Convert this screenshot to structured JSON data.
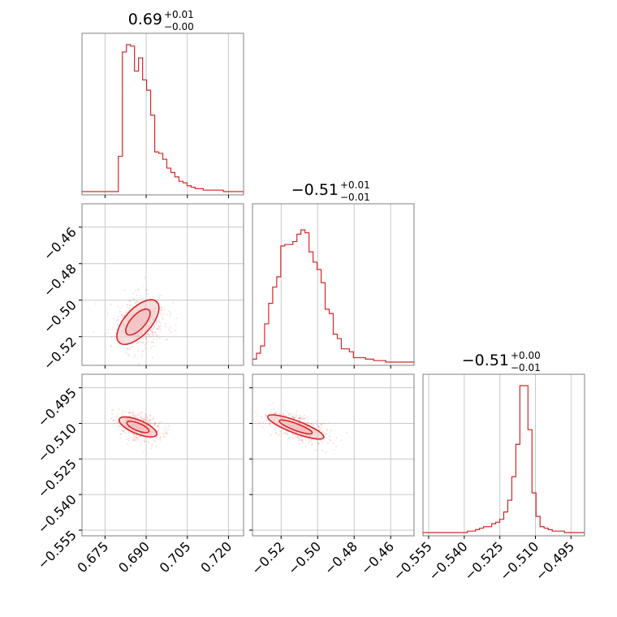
{
  "colors": {
    "series": "#d62728",
    "fill": "#f4c2c3",
    "grid": "#c8c8c8",
    "frame": "#808080"
  },
  "chart_data": {
    "type": "corner",
    "parameters": [
      "p0",
      "p1",
      "p2"
    ],
    "titles": [
      {
        "value": "0.69",
        "plus": "+0.01",
        "minus": "−0.00"
      },
      {
        "value": "−0.51",
        "plus": "+0.01",
        "minus": "−0.01"
      },
      {
        "value": "−0.51",
        "plus": "+0.00",
        "minus": "−0.01"
      }
    ],
    "ranges": [
      [
        0.6666,
        0.7255
      ],
      [
        -0.5357,
        -0.4472
      ],
      [
        -0.5574,
        -0.4893
      ]
    ],
    "ticks": [
      {
        "values": [
          0.675,
          0.69,
          0.705,
          0.72
        ],
        "labels": [
          "0.675",
          "0.690",
          "0.705",
          "0.720"
        ]
      },
      {
        "values": [
          -0.52,
          -0.5,
          -0.48,
          -0.46
        ],
        "labels": [
          "−0.52",
          "−0.50",
          "−0.48",
          "−0.46"
        ]
      },
      {
        "values": [
          -0.555,
          -0.54,
          -0.525,
          -0.51,
          -0.495
        ],
        "labels": [
          "−0.555",
          "−0.540",
          "−0.525",
          "−0.510",
          "−0.495"
        ]
      }
    ],
    "histograms": [
      {
        "counts": [
          0,
          0,
          0,
          0,
          0,
          0,
          0,
          0,
          0,
          24,
          95,
          100,
          99,
          82,
          91,
          76,
          69,
          52,
          27,
          26,
          22,
          16,
          13,
          10,
          7,
          6,
          4,
          3,
          2,
          2,
          1,
          1,
          1,
          1,
          1,
          0,
          0,
          0,
          0,
          0
        ]
      },
      {
        "counts": [
          2,
          6,
          11,
          26,
          40,
          51,
          58,
          79,
          80,
          80,
          82,
          87,
          90,
          88,
          75,
          68,
          63,
          54,
          36,
          33,
          19,
          16,
          9,
          9,
          7,
          3,
          3,
          3,
          2,
          2,
          1,
          1,
          1,
          0,
          0,
          0,
          0,
          0,
          0,
          0
        ]
      },
      {
        "counts": [
          0,
          0,
          0,
          0,
          0,
          0,
          0,
          0,
          0,
          0,
          0,
          1,
          1,
          2,
          3,
          4,
          4,
          6,
          7,
          9,
          14,
          22,
          38,
          60,
          100,
          100,
          70,
          27,
          11,
          4,
          3,
          2,
          1,
          1,
          1,
          0,
          0,
          0,
          0,
          0
        ]
      }
    ],
    "correlations": [
      {
        "x": 0,
        "y": 1,
        "slope": 1.65,
        "sx": 0.004,
        "sy_perp": 0.003
      },
      {
        "x": 0,
        "y": 2,
        "slope": -0.48,
        "sx": 0.004,
        "sy_perp": 0.0012
      },
      {
        "x": 1,
        "y": 2,
        "slope": -0.29,
        "sx": 0.009,
        "sy_perp": 0.0011
      }
    ]
  }
}
